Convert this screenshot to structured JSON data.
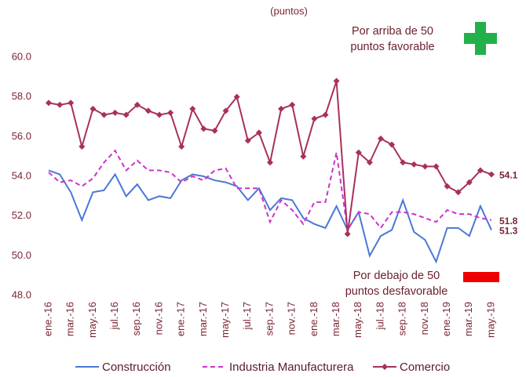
{
  "chart_data": {
    "type": "line",
    "subtitle": "(puntos)",
    "annotations": [
      [
        "Por arriba de 50",
        "puntos favorable"
      ],
      [
        "Por debajo de 50",
        "puntos desfavorable"
      ]
    ],
    "categories": [
      "ene.-16",
      null,
      "mar.-16",
      null,
      "may.-16",
      null,
      "jul.-16",
      null,
      "sep.-16",
      null,
      "nov.-16",
      null,
      "ene.-17",
      null,
      "mar.-17",
      null,
      "may.-17",
      null,
      "jul.-17",
      null,
      "sep.-17",
      null,
      "nov.-17",
      null,
      "ene.-18",
      null,
      "mar.-18",
      null,
      "may.-18",
      null,
      "jul.-18",
      null,
      "sep.-18",
      null,
      "nov.-18",
      null,
      "ene.-19",
      null,
      "mar.-19",
      null,
      "may.-19"
    ],
    "ylim": [
      48,
      60
    ],
    "yticks": [
      {
        "value": 48,
        "label": "48.0"
      },
      {
        "value": 50,
        "label": "50.0"
      },
      {
        "value": 52,
        "label": "52.0"
      },
      {
        "value": 54,
        "label": "54.0"
      },
      {
        "value": 56,
        "label": "56.0"
      },
      {
        "value": 58,
        "label": "58.0"
      },
      {
        "value": 60,
        "label": "60.0"
      }
    ],
    "grid": false,
    "series": [
      {
        "name": "Construcción",
        "color": "#4a78d6",
        "dashed": false,
        "markers": false,
        "values": [
          54.3,
          54.1,
          53.2,
          51.8,
          53.2,
          53.3,
          54.1,
          53.0,
          53.6,
          52.8,
          53.0,
          52.9,
          53.8,
          54.1,
          54.0,
          53.8,
          53.7,
          53.5,
          52.8,
          53.4,
          52.3,
          52.9,
          52.8,
          51.9,
          51.6,
          51.4,
          52.5,
          51.3,
          52.2,
          50.0,
          51.0,
          51.3,
          52.8,
          51.2,
          50.8,
          49.7,
          51.4,
          51.4,
          51.0,
          52.5,
          51.3
        ]
      },
      {
        "name": "Industria Manufacturera",
        "color": "#cc33cc",
        "dashed": true,
        "markers": false,
        "values": [
          54.2,
          53.7,
          53.8,
          53.5,
          53.9,
          54.7,
          55.3,
          54.3,
          54.8,
          54.3,
          54.3,
          54.2,
          53.7,
          54.0,
          53.8,
          54.3,
          54.4,
          53.4,
          53.4,
          53.4,
          51.7,
          52.8,
          52.3,
          51.6,
          52.7,
          52.7,
          55.2,
          51.3,
          52.2,
          52.1,
          51.4,
          52.2,
          52.2,
          52.1,
          51.9,
          51.7,
          52.3,
          52.1,
          52.1,
          51.9,
          51.8
        ]
      },
      {
        "name": "Comercio",
        "color": "#a8305e",
        "dashed": false,
        "markers": true,
        "values": [
          57.7,
          57.6,
          57.7,
          55.5,
          57.4,
          57.1,
          57.2,
          57.1,
          57.6,
          57.3,
          57.1,
          57.2,
          55.5,
          57.4,
          56.4,
          56.3,
          57.3,
          58.0,
          55.8,
          56.2,
          54.7,
          57.4,
          57.6,
          55.0,
          56.9,
          57.1,
          58.8,
          51.1,
          55.2,
          54.7,
          55.9,
          55.6,
          54.7,
          54.6,
          54.5,
          54.5,
          53.5,
          53.2,
          53.7,
          54.3,
          54.1
        ]
      }
    ]
  }
}
